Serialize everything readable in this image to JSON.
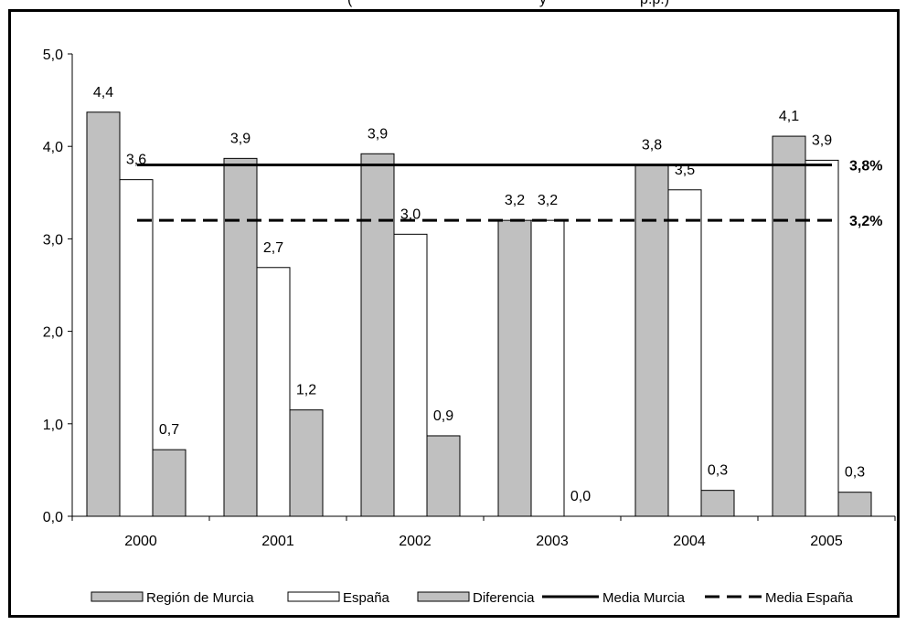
{
  "header_fragment": "(                                              y                       p.p.)",
  "chart_data": {
    "type": "bar",
    "categories": [
      "2000",
      "2001",
      "2002",
      "2003",
      "2004",
      "2005"
    ],
    "series": [
      {
        "name": "Región de Murcia",
        "values": [
          4.4,
          3.9,
          3.9,
          3.2,
          3.8,
          4.1
        ],
        "bar_heights": [
          4.37,
          3.87,
          3.92,
          3.2,
          3.8,
          4.11
        ],
        "labels": [
          "4,4",
          "3,9",
          "3,9",
          "3,2",
          "3,8",
          "4,1"
        ],
        "color": "#c0c0c0"
      },
      {
        "name": "España",
        "values": [
          3.6,
          2.7,
          3.0,
          3.2,
          3.5,
          3.9
        ],
        "bar_heights": [
          3.64,
          2.69,
          3.05,
          3.2,
          3.53,
          3.85
        ],
        "labels": [
          "3,6",
          "2,7",
          "3,0",
          "3,2",
          "3,5",
          "3,9"
        ],
        "color": "#ffffff"
      },
      {
        "name": "Diferencia",
        "values": [
          0.7,
          1.2,
          0.9,
          0.0,
          0.3,
          0.3
        ],
        "bar_heights": [
          0.72,
          1.15,
          0.87,
          0.0,
          0.28,
          0.26
        ],
        "labels": [
          "0,7",
          "1,2",
          "0,9",
          "0,0",
          "0,3",
          "0,3"
        ],
        "color": "#c0c0c0"
      }
    ],
    "lines": [
      {
        "name": "Media Murcia",
        "value": 3.8,
        "label": "3,8%",
        "style": "solid"
      },
      {
        "name": "Media España",
        "value": 3.2,
        "label": "3,2%",
        "style": "dashed"
      }
    ],
    "y_ticks": [
      "0,0",
      "1,0",
      "2,0",
      "3,0",
      "4,0",
      "5,0"
    ],
    "ylim": [
      0,
      5
    ],
    "legend_position": "bottom",
    "grid": false
  }
}
